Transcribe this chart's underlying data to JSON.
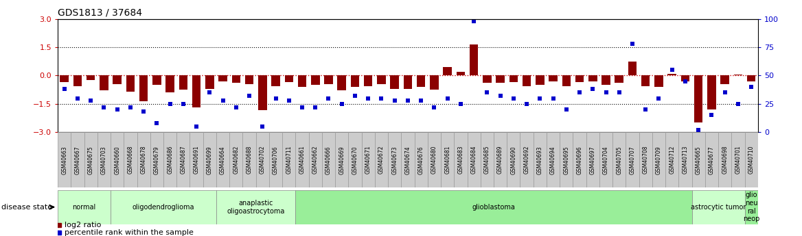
{
  "title": "GDS1813 / 37684",
  "samples": [
    "GSM40663",
    "GSM40667",
    "GSM40675",
    "GSM40703",
    "GSM40660",
    "GSM40668",
    "GSM40678",
    "GSM40679",
    "GSM40686",
    "GSM40687",
    "GSM40691",
    "GSM40699",
    "GSM40664",
    "GSM40682",
    "GSM40688",
    "GSM40702",
    "GSM40706",
    "GSM40711",
    "GSM40661",
    "GSM40662",
    "GSM40666",
    "GSM40669",
    "GSM40670",
    "GSM40671",
    "GSM40672",
    "GSM40673",
    "GSM40674",
    "GSM40676",
    "GSM40680",
    "GSM40681",
    "GSM40683",
    "GSM40684",
    "GSM40685",
    "GSM40689",
    "GSM40690",
    "GSM40692",
    "GSM40693",
    "GSM40694",
    "GSM40695",
    "GSM40696",
    "GSM40697",
    "GSM40704",
    "GSM40705",
    "GSM40707",
    "GSM40708",
    "GSM40709",
    "GSM40712",
    "GSM40713",
    "GSM40665",
    "GSM40677",
    "GSM40698",
    "GSM40701",
    "GSM40710"
  ],
  "log2_ratios": [
    -0.35,
    -0.55,
    -0.25,
    -0.8,
    -0.45,
    -0.85,
    -1.35,
    -0.5,
    -0.9,
    -0.75,
    -1.7,
    -0.7,
    -0.3,
    -0.4,
    -0.45,
    -1.85,
    -0.55,
    -0.35,
    -0.6,
    -0.5,
    -0.45,
    -0.8,
    -0.6,
    -0.55,
    -0.45,
    -0.7,
    -0.7,
    -0.6,
    -0.75,
    0.45,
    0.2,
    1.65,
    -0.4,
    -0.4,
    -0.35,
    -0.55,
    -0.5,
    -0.3,
    -0.55,
    -0.35,
    -0.3,
    -0.5,
    -0.4,
    0.75,
    -0.55,
    -0.6,
    0.1,
    -0.3,
    -2.5,
    -1.8,
    -0.45,
    0.05,
    -0.3
  ],
  "percentile_ranks": [
    38,
    30,
    28,
    22,
    20,
    22,
    18,
    8,
    25,
    25,
    5,
    35,
    28,
    22,
    32,
    5,
    30,
    28,
    22,
    22,
    30,
    25,
    32,
    30,
    30,
    28,
    28,
    28,
    22,
    30,
    25,
    98,
    35,
    32,
    30,
    25,
    30,
    30,
    20,
    35,
    38,
    35,
    35,
    78,
    20,
    30,
    55,
    45,
    2,
    15,
    35,
    25,
    40
  ],
  "disease_groups": [
    {
      "label": "normal",
      "start": 0,
      "end": 4,
      "color": "#ccffcc"
    },
    {
      "label": "oligodendroglioma",
      "start": 4,
      "end": 12,
      "color": "#ccffcc"
    },
    {
      "label": "anaplastic\noligoastrocytoma",
      "start": 12,
      "end": 18,
      "color": "#ccffcc"
    },
    {
      "label": "glioblastoma",
      "start": 18,
      "end": 48,
      "color": "#99ee99"
    },
    {
      "label": "astrocytic tumor",
      "start": 48,
      "end": 52,
      "color": "#ccffcc"
    },
    {
      "label": "glio\nneu\nral\nneop",
      "start": 52,
      "end": 53,
      "color": "#99ee99"
    }
  ],
  "ylim": [
    -3,
    3
  ],
  "y2lim": [
    0,
    100
  ],
  "yticks": [
    -3,
    -1.5,
    0,
    1.5,
    3
  ],
  "y2ticks": [
    0,
    25,
    50,
    75,
    100
  ],
  "bar_color": "#8B0000",
  "dot_color": "#0000CC",
  "zero_line_color": "#CC0000",
  "grid_color": "#000000",
  "background_color": "#ffffff",
  "tick_box_color": "#cccccc",
  "tick_box_edge_color": "#999999"
}
